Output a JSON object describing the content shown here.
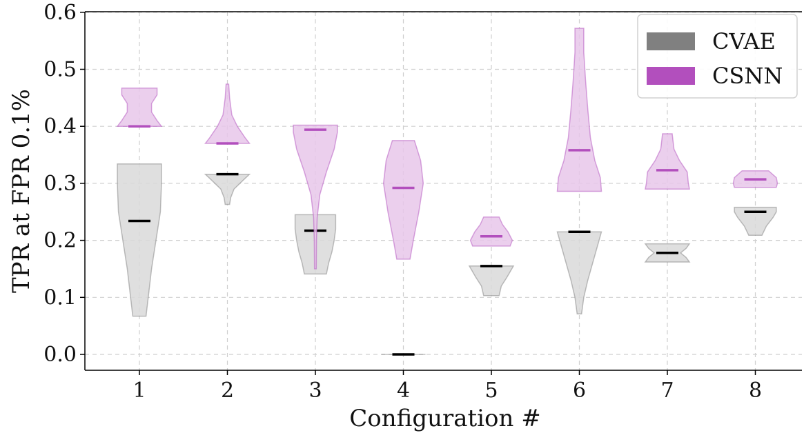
{
  "chart_data": {
    "type": "violin",
    "xlabel": "Configuration #",
    "ylabel": "TPR at FPR 0.1%",
    "categories": [
      "1",
      "2",
      "3",
      "4",
      "5",
      "6",
      "7",
      "8"
    ],
    "yticks": [
      "0.0",
      "0.1",
      "0.2",
      "0.3",
      "0.4",
      "0.5",
      "0.6"
    ],
    "ylim": [
      -0.028,
      0.6
    ],
    "grid": true,
    "legend_position": "top-right",
    "series": [
      {
        "name": "CVAE",
        "color": "#808080",
        "fill": "#d9d9d9",
        "mean_color": "#000000",
        "violins": [
          {
            "min": 0.067,
            "max": 0.334,
            "mean": 0.234,
            "profile": [
              [
                0.067,
                0.3
              ],
              [
                0.1,
                0.4
              ],
              [
                0.15,
                0.55
              ],
              [
                0.2,
                0.75
              ],
              [
                0.25,
                0.95
              ],
              [
                0.3,
                1.0
              ],
              [
                0.334,
                1.0
              ]
            ]
          },
          {
            "min": 0.263,
            "max": 0.316,
            "mean": 0.316,
            "profile": [
              [
                0.263,
                0.1
              ],
              [
                0.275,
                0.15
              ],
              [
                0.29,
                0.3
              ],
              [
                0.305,
                0.7
              ],
              [
                0.316,
                1.0
              ]
            ]
          },
          {
            "min": 0.141,
            "max": 0.245,
            "mean": 0.217,
            "profile": [
              [
                0.141,
                0.5
              ],
              [
                0.16,
                0.6
              ],
              [
                0.18,
                0.75
              ],
              [
                0.2,
                0.85
              ],
              [
                0.22,
                0.92
              ],
              [
                0.245,
                0.92
              ]
            ]
          },
          {
            "min": 0.0,
            "max": 0.0,
            "mean": 0.0,
            "profile": [
              [
                0.0,
                1.0
              ]
            ]
          },
          {
            "min": 0.103,
            "max": 0.155,
            "mean": 0.155,
            "profile": [
              [
                0.103,
                0.35
              ],
              [
                0.12,
                0.45
              ],
              [
                0.135,
                0.7
              ],
              [
                0.155,
                1.0
              ]
            ]
          },
          {
            "min": 0.071,
            "max": 0.215,
            "mean": 0.215,
            "profile": [
              [
                0.071,
                0.1
              ],
              [
                0.1,
                0.2
              ],
              [
                0.13,
                0.38
              ],
              [
                0.16,
                0.6
              ],
              [
                0.19,
                0.82
              ],
              [
                0.215,
                1.0
              ]
            ]
          },
          {
            "min": 0.162,
            "max": 0.194,
            "mean": 0.178,
            "profile": [
              [
                0.162,
                1.0
              ],
              [
                0.17,
                0.85
              ],
              [
                0.178,
                0.6
              ],
              [
                0.186,
                0.85
              ],
              [
                0.194,
                1.0
              ]
            ]
          },
          {
            "min": 0.209,
            "max": 0.258,
            "mean": 0.25,
            "profile": [
              [
                0.209,
                0.3
              ],
              [
                0.225,
                0.5
              ],
              [
                0.24,
                0.8
              ],
              [
                0.25,
                0.95
              ],
              [
                0.258,
                0.95
              ]
            ]
          }
        ]
      },
      {
        "name": "CSNN",
        "color": "#b24fbd",
        "fill": "#e8c7ea",
        "mean_color": "#b24fbd",
        "violins": [
          {
            "min": 0.4,
            "max": 0.467,
            "mean": 0.4,
            "profile": [
              [
                0.4,
                1.0
              ],
              [
                0.41,
                0.8
              ],
              [
                0.425,
                0.55
              ],
              [
                0.44,
                0.55
              ],
              [
                0.455,
                0.8
              ],
              [
                0.467,
                0.8
              ]
            ]
          },
          {
            "min": 0.37,
            "max": 0.474,
            "mean": 0.37,
            "profile": [
              [
                0.37,
                1.0
              ],
              [
                0.38,
                0.8
              ],
              [
                0.4,
                0.45
              ],
              [
                0.42,
                0.2
              ],
              [
                0.45,
                0.1
              ],
              [
                0.474,
                0.06
              ]
            ]
          },
          {
            "min": 0.15,
            "max": 0.402,
            "mean": 0.394,
            "profile": [
              [
                0.15,
                0.04
              ],
              [
                0.2,
                0.05
              ],
              [
                0.24,
                0.08
              ],
              [
                0.28,
                0.2
              ],
              [
                0.32,
                0.5
              ],
              [
                0.36,
                0.85
              ],
              [
                0.39,
                1.0
              ],
              [
                0.402,
                1.0
              ]
            ]
          },
          {
            "min": 0.167,
            "max": 0.375,
            "mean": 0.292,
            "profile": [
              [
                0.167,
                0.3
              ],
              [
                0.2,
                0.45
              ],
              [
                0.25,
                0.7
              ],
              [
                0.3,
                0.9
              ],
              [
                0.34,
                0.78
              ],
              [
                0.375,
                0.5
              ]
            ]
          },
          {
            "min": 0.19,
            "max": 0.241,
            "mean": 0.207,
            "profile": [
              [
                0.19,
                0.85
              ],
              [
                0.2,
                0.95
              ],
              [
                0.215,
                0.75
              ],
              [
                0.228,
                0.5
              ],
              [
                0.241,
                0.35
              ]
            ]
          },
          {
            "min": 0.286,
            "max": 0.572,
            "mean": 0.358,
            "profile": [
              [
                0.286,
                1.0
              ],
              [
                0.31,
                0.95
              ],
              [
                0.34,
                0.7
              ],
              [
                0.38,
                0.5
              ],
              [
                0.43,
                0.38
              ],
              [
                0.48,
                0.28
              ],
              [
                0.53,
                0.2
              ],
              [
                0.572,
                0.2
              ]
            ]
          },
          {
            "min": 0.29,
            "max": 0.387,
            "mean": 0.323,
            "profile": [
              [
                0.29,
                1.0
              ],
              [
                0.3,
                0.95
              ],
              [
                0.32,
                0.9
              ],
              [
                0.34,
                0.55
              ],
              [
                0.36,
                0.3
              ],
              [
                0.387,
                0.22
              ]
            ]
          },
          {
            "min": 0.293,
            "max": 0.322,
            "mean": 0.307,
            "profile": [
              [
                0.293,
                0.95
              ],
              [
                0.3,
                1.0
              ],
              [
                0.31,
                0.95
              ],
              [
                0.322,
                0.6
              ]
            ]
          }
        ]
      }
    ]
  }
}
